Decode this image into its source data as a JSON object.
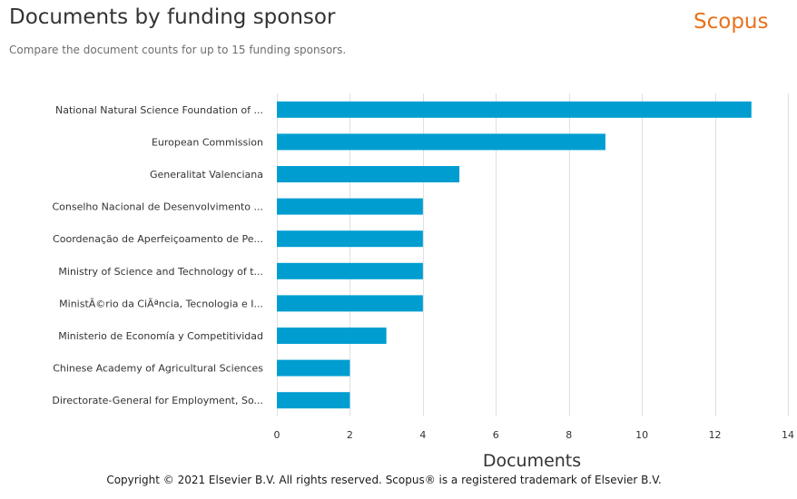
{
  "header": {
    "title": "Documents by funding sponsor",
    "subtitle": "Compare the document counts for up to 15 funding sponsors.",
    "logo_text": "Scopus",
    "logo_color": "#e9711c"
  },
  "footer": {
    "copyright": "Copyright © 2021 Elsevier B.V. All rights reserved. Scopus® is a registered trademark of Elsevier B.V."
  },
  "chart_data": {
    "type": "bar",
    "orientation": "horizontal",
    "categories": [
      "National Natural Science Foundation of ...",
      "European Commission",
      "Generalitat Valenciana",
      "Conselho Nacional de Desenvolvimento ...",
      "Coordenação de Aperfeiçoamento de Pe...",
      "Ministry of Science and Technology of t...",
      "MinistÃ©rio da CiÃªncia, Tecnologia e I...",
      "Ministerio de Economía y Competitividad",
      "Chinese Academy of Agricultural Sciences",
      "Directorate-General for Employment, So..."
    ],
    "values": [
      13,
      9,
      5,
      4,
      4,
      4,
      4,
      3,
      2,
      2
    ],
    "xlabel": "Documents",
    "xlim": [
      0,
      14
    ],
    "xticks": [
      0,
      2,
      4,
      6,
      8,
      10,
      12,
      14
    ],
    "grid": true,
    "bar_color": "#009dd1",
    "grid_color": "#e0e0e0"
  }
}
